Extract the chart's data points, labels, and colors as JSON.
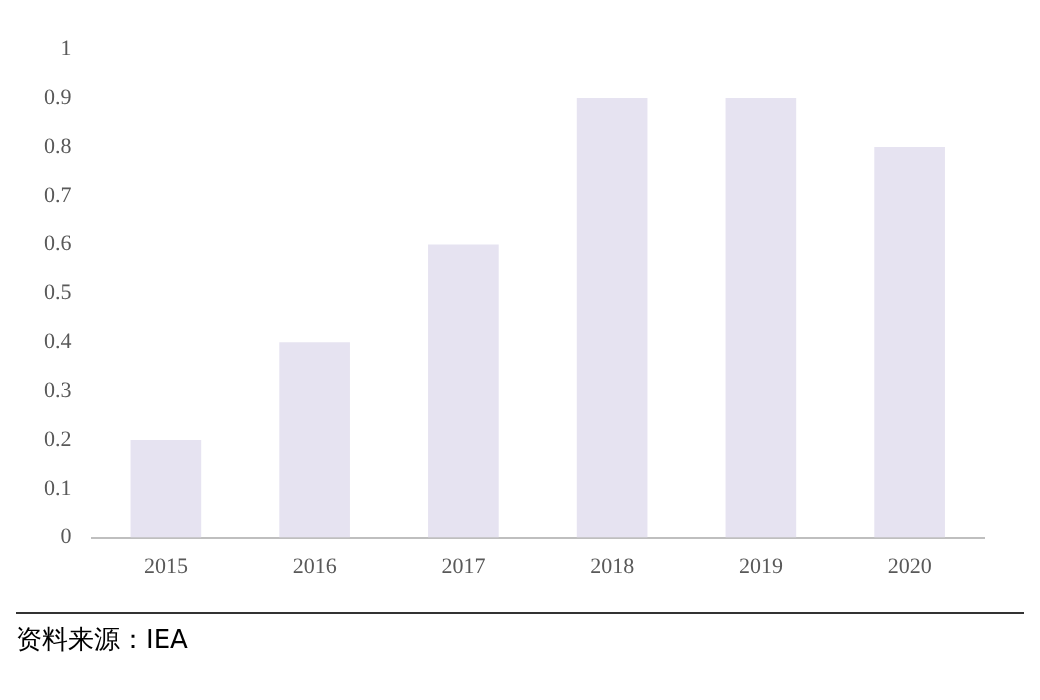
{
  "chart_data": {
    "type": "bar",
    "categories": [
      "2015",
      "2016",
      "2017",
      "2018",
      "2019",
      "2020"
    ],
    "values": [
      0.2,
      0.4,
      0.6,
      0.9,
      0.9,
      0.8
    ],
    "color": "#e6e3f1",
    "ylim": [
      0,
      1
    ],
    "yticks": [
      0,
      0.1,
      0.2,
      0.3,
      0.4,
      0.5,
      0.6,
      0.7,
      0.8,
      0.9,
      1
    ],
    "grid": false,
    "legend": false,
    "annotations": [
      "资料来源：IEA"
    ]
  }
}
